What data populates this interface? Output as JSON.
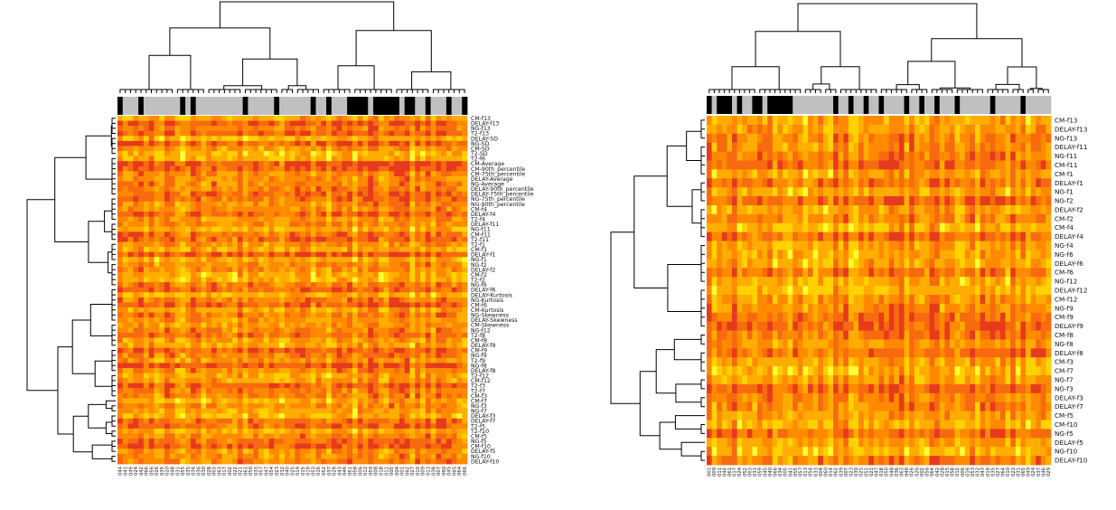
{
  "chart_data": [
    {
      "type": "heatmap",
      "title": "",
      "color_scale": [
        "#ffff33",
        "#ffd200",
        "#ffad00",
        "#ff8a00",
        "#f76a10",
        "#e63a1c"
      ],
      "column_groups_palette": {
        "0": "#c0c0c0",
        "1": "#000000"
      },
      "row_labels": [
        "CM-f13",
        "DELAY-f13",
        "NG-f13",
        "T2-f13",
        "DELAY-SD",
        "NG-SD",
        "CM-SD",
        "T2-SD",
        "T2-f6",
        "CM-Average",
        "CM-90th_percentile",
        "CM-75th_percentile",
        "DELAY-Average",
        "NG-Average",
        "DELAY-90th_percentile",
        "DELAY-75th_percentile",
        "NG-75th_percentile",
        "NG-90th_percentile",
        "CM-f4",
        "DELAY-f4",
        "T2-f4",
        "DELAY-f11",
        "NG-f11",
        "CM-f11",
        "T2-f11",
        "T2-f1",
        "CM-f1",
        "DELAY-f1",
        "NG-f1",
        "NG-f2",
        "DELAY-f2",
        "CM-f2",
        "T2-f2",
        "NG-f6",
        "DELAY-f6",
        "DELAY-Kurtosis",
        "NG-Kurtosis",
        "CM-f6",
        "CM-Kurtosis",
        "NG-Skewness",
        "DELAY-Skewness",
        "CM-Skewness",
        "NG-f12",
        "T2-f8",
        "CM-f8",
        "DELAY-f9",
        "CM-f9",
        "NG-f9",
        "T2-f9",
        "NG-f8",
        "DELAY-f8",
        "T2-f12",
        "CM-f12",
        "T2-f3",
        "T2-f7",
        "CM-f3",
        "CM-f7",
        "NG-f3",
        "NG-f7",
        "DELAY-f3",
        "DELAY-f7",
        "T2-f5",
        "T2-f10",
        "CM-f5",
        "NG-f5",
        "CM-f10",
        "DELAY-f5",
        "NG-f10",
        "DELAY-f10"
      ],
      "column_labels": [
        "044",
        "041",
        "049",
        "024",
        "042",
        "066",
        "056",
        "026",
        "039",
        "020",
        "048",
        "031",
        "055",
        "035",
        "034",
        "036",
        "030",
        "028",
        "003",
        "063",
        "017",
        "002",
        "022",
        "021",
        "061",
        "050",
        "033",
        "057",
        "047",
        "054",
        "023",
        "032",
        "040",
        "025",
        "014",
        "015",
        "019",
        "053",
        "016",
        "052",
        "037",
        "029",
        "043",
        "046",
        "051",
        "058",
        "006",
        "012",
        "059",
        "008",
        "018",
        "011",
        "005",
        "004",
        "001",
        "062",
        "027",
        "010",
        "009",
        "013",
        "038",
        "007",
        "060",
        "045",
        "065",
        "064",
        "066"
      ],
      "column_groups": [
        1,
        0,
        0,
        0,
        1,
        0,
        0,
        0,
        0,
        0,
        0,
        0,
        1,
        0,
        1,
        0,
        0,
        0,
        0,
        0,
        0,
        0,
        0,
        0,
        1,
        0,
        0,
        0,
        0,
        0,
        1,
        0,
        0,
        0,
        0,
        0,
        0,
        1,
        0,
        0,
        1,
        0,
        0,
        0,
        1,
        1,
        1,
        1,
        0,
        1,
        1,
        1,
        1,
        1,
        0,
        1,
        1,
        0,
        0,
        1,
        0,
        0,
        0,
        1,
        0,
        0,
        1
      ],
      "seed": 7
    },
    {
      "type": "heatmap",
      "title": "",
      "color_scale": [
        "#ffff33",
        "#ffd200",
        "#ffad00",
        "#ff8a00",
        "#f76a10",
        "#e63a1c"
      ],
      "column_groups_palette": {
        "0": "#c0c0c0",
        "1": "#000000"
      },
      "row_labels": [
        "CM-f13",
        "DELAY-f13",
        "NG-f13",
        "DELAY-f11",
        "NG-f11",
        "CM-f11",
        "CM-f1",
        "DELAY-f1",
        "NG-f1",
        "NG-f2",
        "DELAY-f2",
        "CM-f2",
        "CM-f4",
        "DELAY-f4",
        "NG-f4",
        "NG-f6",
        "DELAY-f6",
        "CM-f6",
        "NG-f12",
        "DELAY-f12",
        "CM-f12",
        "NG-f9",
        "CM-f9",
        "DELAY-f9",
        "CM-f8",
        "NG-f8",
        "DELAY-f8",
        "CM-f3",
        "CM-f7",
        "NG-f7",
        "NG-f3",
        "DELAY-f3",
        "DELAY-f7",
        "CM-f5",
        "CM-f10",
        "NG-f5",
        "DELAY-f5",
        "NG-f10",
        "DELAY-f10"
      ],
      "column_labels": [
        "001",
        "009",
        "011",
        "044",
        "061",
        "017",
        "024",
        "052",
        "003",
        "031",
        "059",
        "045",
        "040",
        "066",
        "034",
        "005",
        "041",
        "055",
        "057",
        "013",
        "054",
        "033",
        "004",
        "060",
        "014",
        "062",
        "039",
        "007",
        "023",
        "030",
        "025",
        "051",
        "021",
        "047",
        "018",
        "050",
        "048",
        "036",
        "063",
        "049",
        "026",
        "020",
        "002",
        "056",
        "064",
        "042",
        "028",
        "015",
        "058",
        "012",
        "006",
        "016",
        "053",
        "032",
        "043",
        "019",
        "035",
        "027",
        "064",
        "010",
        "022",
        "031",
        "065",
        "049",
        "024",
        "037",
        "046",
        "029"
      ],
      "column_groups": [
        1,
        0,
        1,
        1,
        1,
        0,
        1,
        0,
        0,
        1,
        1,
        0,
        1,
        1,
        1,
        1,
        1,
        0,
        0,
        0,
        0,
        0,
        0,
        0,
        0,
        1,
        0,
        0,
        1,
        0,
        0,
        1,
        0,
        0,
        1,
        0,
        0,
        0,
        0,
        1,
        0,
        0,
        1,
        0,
        0,
        1,
        0,
        0,
        0,
        1,
        0,
        0,
        0,
        0,
        0,
        0,
        1,
        0,
        0,
        0,
        0,
        0,
        1,
        0,
        0,
        0,
        0,
        0
      ],
      "seed": 23
    }
  ]
}
